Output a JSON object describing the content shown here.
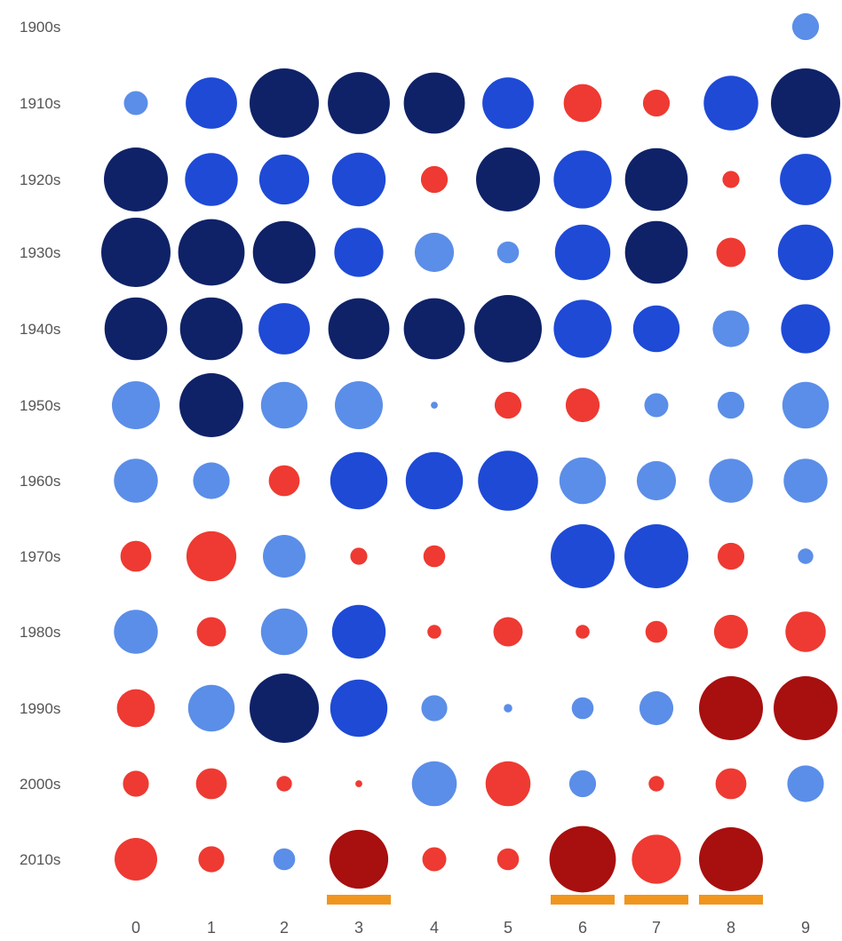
{
  "chart_data": {
    "type": "bubble-grid",
    "rows": [
      "1900s",
      "1910s",
      "1920s",
      "1930s",
      "1940s",
      "1950s",
      "1960s",
      "1970s",
      "1980s",
      "1990s",
      "2000s",
      "2010s"
    ],
    "columns": [
      "0",
      "1",
      "2",
      "3",
      "4",
      "5",
      "6",
      "7",
      "8",
      "9"
    ],
    "colors": {
      "blue_strong": "#0f2268",
      "blue_mid": "#1e4ad6",
      "blue_light": "#5b8ee8",
      "red_light": "#ee3a32",
      "red_strong": "#a80f0f",
      "highlight": "#f0961e"
    },
    "cells": [
      [
        null,
        null,
        null,
        null,
        null,
        null,
        null,
        null,
        null,
        {
          "v": -0.15,
          "tone": "blue_light"
        }
      ],
      [
        {
          "v": -0.12,
          "tone": "blue_light"
        },
        {
          "v": -0.55,
          "tone": "blue_mid"
        },
        {
          "v": -1.0,
          "tone": "blue_strong"
        },
        {
          "v": -0.8,
          "tone": "blue_strong"
        },
        {
          "v": -0.78,
          "tone": "blue_strong"
        },
        {
          "v": -0.55,
          "tone": "blue_mid"
        },
        {
          "v": 0.3,
          "tone": "red_light"
        },
        {
          "v": 0.15,
          "tone": "red_light"
        },
        {
          "v": -0.62,
          "tone": "blue_mid"
        },
        {
          "v": -1.0,
          "tone": "blue_strong"
        }
      ],
      [
        {
          "v": -0.85,
          "tone": "blue_strong"
        },
        {
          "v": -0.58,
          "tone": "blue_mid"
        },
        {
          "v": -0.52,
          "tone": "blue_mid"
        },
        {
          "v": -0.6,
          "tone": "blue_mid"
        },
        {
          "v": 0.15,
          "tone": "red_light"
        },
        {
          "v": -0.85,
          "tone": "blue_strong"
        },
        {
          "v": -0.7,
          "tone": "blue_mid"
        },
        {
          "v": -0.82,
          "tone": "blue_strong"
        },
        {
          "v": 0.06,
          "tone": "red_light"
        },
        {
          "v": -0.55,
          "tone": "blue_mid"
        }
      ],
      [
        {
          "v": -1.0,
          "tone": "blue_strong"
        },
        {
          "v": -0.92,
          "tone": "blue_strong"
        },
        {
          "v": -0.82,
          "tone": "blue_strong"
        },
        {
          "v": -0.5,
          "tone": "blue_mid"
        },
        {
          "v": -0.32,
          "tone": "blue_light"
        },
        {
          "v": -0.1,
          "tone": "blue_light"
        },
        {
          "v": -0.64,
          "tone": "blue_mid"
        },
        {
          "v": -0.82,
          "tone": "blue_strong"
        },
        {
          "v": 0.18,
          "tone": "red_light"
        },
        {
          "v": -0.64,
          "tone": "blue_mid"
        }
      ],
      [
        {
          "v": -0.82,
          "tone": "blue_strong"
        },
        {
          "v": -0.82,
          "tone": "blue_strong"
        },
        {
          "v": -0.55,
          "tone": "blue_mid"
        },
        {
          "v": -0.78,
          "tone": "blue_strong"
        },
        {
          "v": -0.78,
          "tone": "blue_strong"
        },
        {
          "v": -0.95,
          "tone": "blue_strong"
        },
        {
          "v": -0.7,
          "tone": "blue_mid"
        },
        {
          "v": -0.45,
          "tone": "blue_mid"
        },
        {
          "v": -0.28,
          "tone": "blue_light"
        },
        {
          "v": -0.5,
          "tone": "blue_mid"
        }
      ],
      [
        {
          "v": -0.48,
          "tone": "blue_light"
        },
        {
          "v": -0.85,
          "tone": "blue_strong"
        },
        {
          "v": -0.45,
          "tone": "blue_light"
        },
        {
          "v": -0.48,
          "tone": "blue_light"
        },
        {
          "v": -0.01,
          "tone": "blue_light"
        },
        {
          "v": 0.15,
          "tone": "red_light"
        },
        {
          "v": 0.24,
          "tone": "red_light"
        },
        {
          "v": -0.12,
          "tone": "blue_light"
        },
        {
          "v": -0.15,
          "tone": "blue_light"
        },
        {
          "v": -0.45,
          "tone": "blue_light"
        }
      ],
      [
        {
          "v": -0.4,
          "tone": "blue_light"
        },
        {
          "v": -0.28,
          "tone": "blue_light"
        },
        {
          "v": 0.2,
          "tone": "red_light"
        },
        {
          "v": -0.68,
          "tone": "blue_mid"
        },
        {
          "v": -0.68,
          "tone": "blue_mid"
        },
        {
          "v": -0.75,
          "tone": "blue_mid"
        },
        {
          "v": -0.45,
          "tone": "blue_light"
        },
        {
          "v": -0.32,
          "tone": "blue_light"
        },
        {
          "v": -0.4,
          "tone": "blue_light"
        },
        {
          "v": -0.4,
          "tone": "blue_light"
        }
      ],
      [
        {
          "v": 0.2,
          "tone": "red_light"
        },
        {
          "v": 0.52,
          "tone": "red_light"
        },
        {
          "v": -0.38,
          "tone": "blue_light"
        },
        {
          "v": 0.06,
          "tone": "red_light"
        },
        {
          "v": 0.1,
          "tone": "red_light"
        },
        null,
        {
          "v": -0.85,
          "tone": "blue_mid"
        },
        {
          "v": -0.85,
          "tone": "blue_mid"
        },
        {
          "v": 0.15,
          "tone": "red_light"
        },
        {
          "v": -0.05,
          "tone": "blue_light"
        }
      ],
      [
        {
          "v": -0.4,
          "tone": "blue_light"
        },
        {
          "v": 0.18,
          "tone": "red_light"
        },
        {
          "v": -0.45,
          "tone": "blue_light"
        },
        {
          "v": -0.6,
          "tone": "blue_mid"
        },
        {
          "v": 0.04,
          "tone": "red_light"
        },
        {
          "v": 0.18,
          "tone": "red_light"
        },
        {
          "v": 0.04,
          "tone": "red_light"
        },
        {
          "v": 0.1,
          "tone": "red_light"
        },
        {
          "v": 0.24,
          "tone": "red_light"
        },
        {
          "v": 0.34,
          "tone": "red_light"
        }
      ],
      [
        {
          "v": 0.3,
          "tone": "red_light"
        },
        {
          "v": -0.45,
          "tone": "blue_light"
        },
        {
          "v": -1.0,
          "tone": "blue_strong"
        },
        {
          "v": -0.68,
          "tone": "blue_mid"
        },
        {
          "v": -0.14,
          "tone": "blue_light"
        },
        {
          "v": -0.015,
          "tone": "blue_light"
        },
        {
          "v": -0.1,
          "tone": "blue_light"
        },
        {
          "v": -0.24,
          "tone": "blue_light"
        },
        {
          "v": 0.85,
          "tone": "red_strong"
        },
        {
          "v": 0.85,
          "tone": "red_strong"
        }
      ],
      [
        {
          "v": 0.14,
          "tone": "red_light"
        },
        {
          "v": 0.2,
          "tone": "red_light"
        },
        {
          "v": 0.05,
          "tone": "red_light"
        },
        {
          "v": 0.01,
          "tone": "red_light"
        },
        {
          "v": -0.42,
          "tone": "blue_light"
        },
        {
          "v": 0.42,
          "tone": "red_light"
        },
        {
          "v": -0.15,
          "tone": "blue_light"
        },
        {
          "v": 0.05,
          "tone": "red_light"
        },
        {
          "v": 0.2,
          "tone": "red_light"
        },
        {
          "v": -0.28,
          "tone": "blue_light"
        }
      ],
      [
        {
          "v": 0.38,
          "tone": "red_light"
        },
        {
          "v": 0.14,
          "tone": "red_light"
        },
        {
          "v": -0.1,
          "tone": "blue_light"
        },
        {
          "v": 0.72,
          "tone": "red_strong"
        },
        {
          "v": 0.12,
          "tone": "red_light"
        },
        {
          "v": 0.1,
          "tone": "red_light"
        },
        {
          "v": 0.92,
          "tone": "red_strong"
        },
        {
          "v": 0.5,
          "tone": "red_light"
        },
        {
          "v": 0.85,
          "tone": "red_strong"
        },
        null
      ]
    ],
    "highlighted_columns": [
      "3",
      "6",
      "7",
      "8"
    ]
  }
}
